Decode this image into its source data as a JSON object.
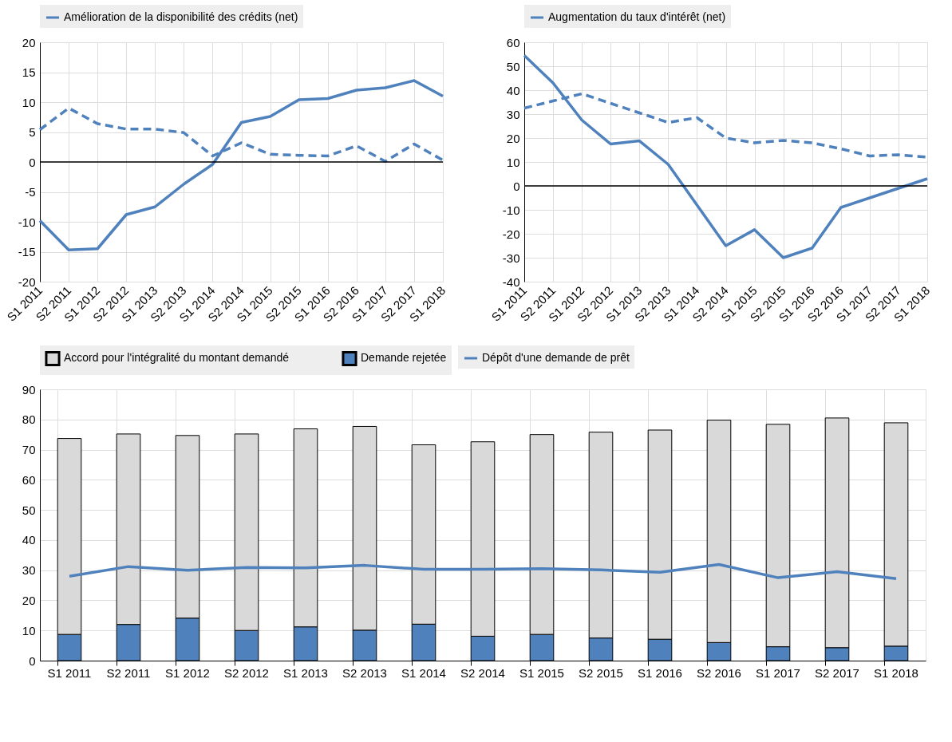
{
  "chart_data": [
    {
      "type": "line",
      "categories": [
        "S1 2011",
        "S2 2011",
        "S1 2012",
        "S2 2012",
        "S1 2013",
        "S2 2013",
        "S1 2014",
        "S2 2014",
        "S1 2015",
        "S2 2015",
        "S1 2016",
        "S2 2016",
        "S1 2017",
        "S2 2017",
        "S1 2018"
      ],
      "series": [
        {
          "name": "Amélioration de la disponibilité des crédits (net)",
          "color": "#4f81bd",
          "line_style": "solid",
          "values": [
            -9.8,
            -14.7,
            -14.5,
            -8.8,
            -7.5,
            -3.7,
            -0.4,
            6.6,
            7.6,
            10.4,
            10.6,
            12,
            12.4,
            13.6,
            11
          ]
        },
        {
          "color": "#4f81bd",
          "line_style": "dashed",
          "values": [
            5.4,
            9,
            6.4,
            5.5,
            5.5,
            4.9,
            1,
            3.2,
            1.3,
            1.1,
            1,
            2.7,
            0.1,
            3,
            0.3
          ]
        }
      ],
      "ylim": [
        -20,
        20
      ],
      "yticks": [
        -20,
        -15,
        -10,
        -5,
        0,
        5,
        10,
        15,
        20
      ],
      "grid": true,
      "legend": "top",
      "ref_lines": [
        {
          "axis": "y",
          "value": 0,
          "color": "#000000"
        }
      ]
    },
    {
      "type": "line",
      "categories": [
        "S1 2011",
        "S2 2011",
        "S1 2012",
        "S2 2012",
        "S1 2013",
        "S2 2013",
        "S1 2014",
        "S2 2014",
        "S1 2015",
        "S2 2015",
        "S1 2016",
        "S2 2016",
        "S1 2017",
        "S2 2017",
        "S1 2018"
      ],
      "series": [
        {
          "name": "Augmentation du taux d'intérêt (net)",
          "color": "#4f81bd",
          "line_style": "solid",
          "values": [
            54.5,
            43,
            27.5,
            17.5,
            18.8,
            9,
            -8,
            -25,
            -18.3,
            -30,
            -26,
            -9,
            -5,
            -1,
            3
          ]
        },
        {
          "color": "#4f81bd",
          "line_style": "dashed",
          "values": [
            32.5,
            35.5,
            38.5,
            34.5,
            30.5,
            26.5,
            28.5,
            20,
            18,
            19,
            18,
            15.5,
            12.5,
            13,
            12
          ]
        }
      ],
      "ylim": [
        -40,
        60
      ],
      "yticks": [
        -40,
        -30,
        -20,
        -10,
        0,
        10,
        20,
        30,
        40,
        50,
        60
      ],
      "grid": true,
      "legend": "top",
      "ref_lines": [
        {
          "axis": "y",
          "value": 0,
          "color": "#000000"
        }
      ]
    },
    {
      "type": "bar",
      "stacked": true,
      "categories": [
        "S1 2011",
        "S2 2011",
        "S1 2012",
        "S2 2012",
        "S1 2013",
        "S2 2013",
        "S1 2014",
        "S2 2014",
        "S1 2015",
        "S2 2015",
        "S1 2016",
        "S2 2016",
        "S1 2017",
        "S2 2017",
        "S1 2018"
      ],
      "series": [
        {
          "name": "Demande rejetée",
          "color": "#4f81bd",
          "values": [
            8.7,
            12,
            14.1,
            10,
            11.2,
            10.1,
            12.1,
            8.1,
            8.7,
            7.5,
            7.1,
            6,
            4.6,
            4.3,
            4.8
          ]
        },
        {
          "name": "Accord pour l'intégralité du montant demandé",
          "color": "#d9d9d9",
          "values": [
            65.0,
            63.2,
            60.6,
            65.2,
            65.7,
            67.6,
            59.5,
            64.5,
            66.3,
            68.3,
            69.4,
            73.8,
            73.8,
            76.2,
            74.1
          ]
        },
        {
          "name": "Dépôt d'une demande de prêt",
          "type": "line",
          "color": "#4f81bd",
          "line_style": "solid",
          "values": [
            28,
            31.2,
            30,
            30.9,
            30.8,
            31.6,
            30.3,
            30.3,
            30.5,
            30.1,
            29.3,
            31.9,
            27.5,
            29.5,
            27.2
          ]
        }
      ],
      "ylim": [
        0,
        90
      ],
      "yticks": [
        0,
        10,
        20,
        30,
        40,
        50,
        60,
        70,
        80,
        90
      ],
      "grid": true,
      "legend": "top"
    }
  ]
}
